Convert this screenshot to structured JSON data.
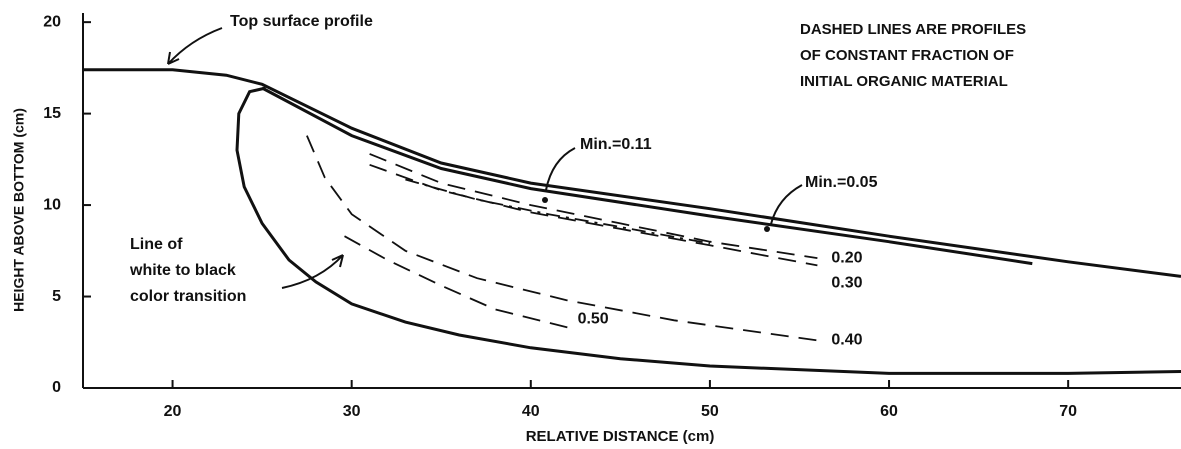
{
  "chart_data": {
    "type": "line",
    "xlabel": "RELATIVE DISTANCE (cm)",
    "ylabel": "HEIGHT ABOVE BOTTOM (cm)",
    "xlim": [
      15,
      76.3
    ],
    "ylim": [
      0,
      20.5
    ],
    "xticks": [
      20,
      30,
      40,
      50,
      60,
      70
    ],
    "yticks": [
      0,
      5,
      10,
      15,
      20
    ],
    "color": "#111111",
    "series": [
      {
        "style": "solid",
        "x": [
          15,
          20,
          23,
          25,
          30,
          35,
          40,
          50,
          60,
          70,
          76.3
        ],
        "values": [
          17.4,
          17.4,
          17.1,
          16.6,
          14.2,
          12.3,
          11.2,
          9.8,
          8.3,
          6.9,
          6.1
        ]
      },
      {
        "style": "solid",
        "x": [
          25,
          30,
          35,
          40,
          50,
          60,
          68
        ],
        "values": [
          16.4,
          13.8,
          12.0,
          10.9,
          9.4,
          8.0,
          6.8
        ]
      },
      {
        "style": "solid",
        "x": [
          25.2,
          24.3,
          23.7,
          23.6,
          24,
          25,
          26.5,
          28,
          30,
          33,
          36,
          40,
          45,
          50,
          60,
          70,
          76.3
        ],
        "values": [
          16.4,
          16.2,
          15,
          13,
          11,
          9,
          7,
          5.8,
          4.6,
          3.6,
          2.9,
          2.2,
          1.6,
          1.2,
          0.8,
          0.8,
          0.9
        ]
      },
      {
        "name": "0.20",
        "style": "dashed",
        "x": [
          31,
          35,
          40,
          45,
          50,
          56
        ],
        "values": [
          12.8,
          11.2,
          10.0,
          9.0,
          8.0,
          7.1
        ]
      },
      {
        "name": "0.30",
        "style": "dashed",
        "x": [
          31,
          35,
          40,
          45,
          50,
          56
        ],
        "values": [
          12.2,
          10.8,
          9.6,
          8.7,
          7.8,
          6.7
        ]
      },
      {
        "style": "dashdot",
        "x": [
          33,
          37,
          41,
          45,
          50
        ],
        "values": [
          11.4,
          10.3,
          9.5,
          8.8,
          7.9
        ]
      },
      {
        "name": "0.40",
        "style": "dashed",
        "x": [
          27.5,
          28.5,
          30,
          33,
          37,
          42,
          48,
          56
        ],
        "values": [
          13.8,
          11.5,
          9.5,
          7.5,
          6.0,
          4.8,
          3.7,
          2.6
        ]
      },
      {
        "name": "0.50",
        "style": "dashed",
        "x": [
          29.6,
          32,
          35,
          38,
          42.5
        ],
        "values": [
          8.3,
          7.0,
          5.6,
          4.3,
          3.2
        ]
      }
    ],
    "annotations": [
      "Top surface profile",
      "Min.=0.11",
      "Min.=0.05",
      "Line of",
      "white to black",
      "color transition",
      "DASHED LINES ARE PROFILES",
      "OF CONSTANT FRACTION OF",
      "INITIAL ORGANIC MATERIAL"
    ]
  }
}
